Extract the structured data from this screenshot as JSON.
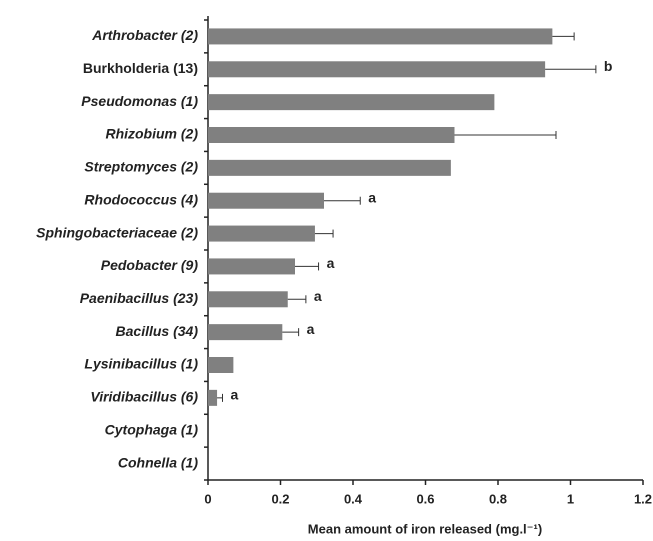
{
  "chart_data": {
    "type": "bar",
    "orientation": "horizontal",
    "x_label": "Mean amount of iron released (mg.l⁻¹)",
    "categories": [
      "Arthrobacter (2)",
      "Burkholderia (13)",
      "Pseudomonas (1)",
      "Rhizobium (2)",
      "Streptomyces (2)",
      "Rhodococcus (4)",
      "Sphingobacteriaceae (2)",
      "Pedobacter (9)",
      "Paenibacillus (23)",
      "Bacillus (34)",
      "Lysinibacillus (1)",
      "Viridibacillus (6)",
      "Cytophaga (1)",
      "Cohnella (1)"
    ],
    "values": [
      0.95,
      0.93,
      0.79,
      0.68,
      0.67,
      0.32,
      0.295,
      0.24,
      0.22,
      0.205,
      0.07,
      0.025,
      0,
      0
    ],
    "errors": [
      0.06,
      0.14,
      null,
      0.28,
      null,
      0.1,
      0.05,
      0.065,
      0.05,
      0.045,
      null,
      0.015,
      null,
      null
    ],
    "annotations": [
      null,
      "b",
      null,
      null,
      null,
      "a",
      null,
      "a",
      "a",
      "a",
      null,
      "a",
      null,
      null
    ],
    "highlight_index": 1,
    "color": "#808080",
    "xlim": [
      0,
      1.2
    ],
    "xticks": [
      0,
      0.2,
      0.4,
      0.6,
      0.8,
      1,
      1.2
    ]
  }
}
